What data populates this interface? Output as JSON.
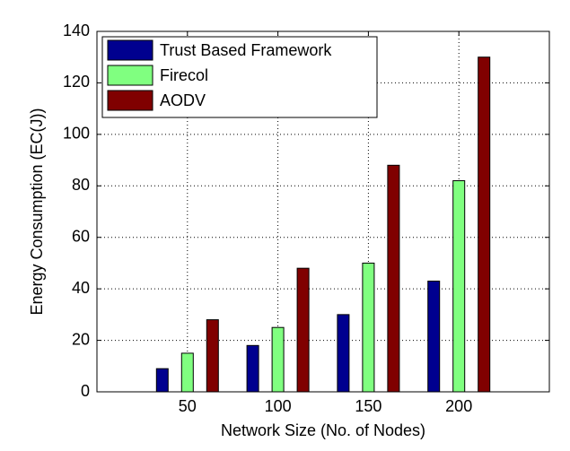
{
  "chart_data": {
    "type": "bar",
    "x_label": "Network Size (No. of Nodes)",
    "y_label": "Energy Consumption (EC(J))",
    "x": [
      50,
      100,
      150,
      200
    ],
    "series": [
      {
        "name": "Trust Based Framework",
        "color": "#00008f",
        "values": [
          9,
          18,
          30,
          43
        ]
      },
      {
        "name": "Firecol",
        "color": "#80ff80",
        "values": [
          15,
          25,
          50,
          82
        ]
      },
      {
        "name": "AODV",
        "color": "#800000",
        "values": [
          28,
          48,
          88,
          130
        ]
      }
    ],
    "xlim": [
      0,
      250
    ],
    "xticks": [
      50,
      100,
      150,
      200
    ],
    "ylim": [
      0,
      140
    ],
    "yticks": [
      0,
      20,
      40,
      60,
      80,
      100,
      120,
      140
    ],
    "grid": true,
    "legend": "upper left"
  }
}
